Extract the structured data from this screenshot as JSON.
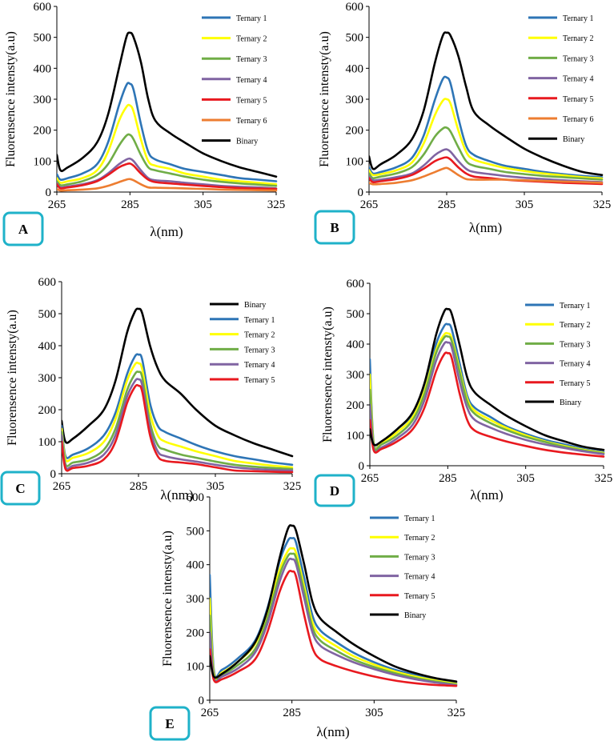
{
  "figure": {
    "panel_style": {
      "label_box_color": "#1fb2c9",
      "line_width_note": "thick"
    },
    "series_colors": {
      "Binary": "#000000",
      "Ternary 1": "#2e75b6",
      "Ternary 2": "#ffff00",
      "Ternary 3": "#70ad47",
      "Ternary 4": "#8064a2",
      "Ternary 5": "#e8191f",
      "Ternary 6": "#ed7d31"
    }
  },
  "chart_data": [
    {
      "panel": "A",
      "type": "line",
      "xlabel": "λ(nm)",
      "ylabel": "Fluorensence intensty(a.u)",
      "xlim": [
        265,
        325
      ],
      "ylim": [
        0,
        600
      ],
      "xticks": [
        "265",
        "285",
        "305",
        "325"
      ],
      "yticks": [
        "0",
        "100",
        "200",
        "300",
        "400",
        "500",
        "600"
      ],
      "legend": [
        "Ternary 1",
        "Ternary 2",
        "Ternary 3",
        "Ternary 4",
        "Ternary 5",
        "Ternary 6",
        "Binary"
      ],
      "x": [
        265,
        266,
        268,
        272,
        276,
        279,
        282,
        284,
        285,
        286,
        288,
        290,
        292,
        296,
        300,
        305,
        310,
        315,
        320,
        325
      ],
      "series": [
        {
          "name": "Ternary 1",
          "values": [
            58,
            40,
            45,
            60,
            90,
            160,
            280,
            345,
            350,
            330,
            220,
            130,
            105,
            90,
            75,
            65,
            55,
            45,
            40,
            35
          ]
        },
        {
          "name": "Ternary 2",
          "values": [
            45,
            30,
            35,
            45,
            70,
            130,
            230,
            275,
            280,
            260,
            170,
            100,
            85,
            75,
            60,
            50,
            40,
            35,
            30,
            25
          ]
        },
        {
          "name": "Ternary 3",
          "values": [
            35,
            22,
            25,
            35,
            55,
            90,
            150,
            182,
            185,
            170,
            120,
            80,
            70,
            60,
            50,
            40,
            33,
            28,
            24,
            20
          ]
        },
        {
          "name": "Ternary 4",
          "values": [
            28,
            15,
            18,
            25,
            38,
            60,
            90,
            105,
            108,
            100,
            70,
            45,
            38,
            35,
            30,
            25,
            20,
            17,
            15,
            12
          ]
        },
        {
          "name": "Ternary 5",
          "values": [
            25,
            12,
            15,
            22,
            35,
            55,
            80,
            90,
            92,
            85,
            60,
            40,
            32,
            28,
            24,
            20,
            16,
            13,
            11,
            10
          ]
        },
        {
          "name": "Ternary 6",
          "values": [
            10,
            5,
            6,
            8,
            12,
            20,
            32,
            40,
            42,
            38,
            25,
            15,
            14,
            13,
            12,
            10,
            8,
            7,
            6,
            5
          ]
        },
        {
          "name": "Binary",
          "values": [
            120,
            70,
            80,
            110,
            160,
            250,
            400,
            500,
            515,
            500,
            420,
            300,
            230,
            190,
            160,
            125,
            100,
            80,
            65,
            50
          ]
        }
      ],
      "label": "A"
    },
    {
      "panel": "B",
      "type": "line",
      "xlabel": "λ(nm)",
      "ylabel": "Fluorensence intensty(a.u)",
      "xlim": [
        265,
        325
      ],
      "ylim": [
        0,
        600
      ],
      "xticks": [
        "265",
        "285",
        "305",
        "325"
      ],
      "yticks": [
        "0",
        "100",
        "200",
        "300",
        "400",
        "500",
        "600"
      ],
      "legend": [
        "Ternary 1",
        "Ternary 2",
        "Ternary 3",
        "Ternary 4",
        "Ternary 5",
        "Ternary 6",
        "Binary"
      ],
      "x": [
        265,
        266,
        268,
        272,
        276,
        279,
        282,
        284,
        285,
        286,
        288,
        290,
        292,
        296,
        300,
        305,
        310,
        315,
        320,
        325
      ],
      "series": [
        {
          "name": "Ternary 1",
          "values": [
            80,
            60,
            65,
            80,
            110,
            180,
            300,
            365,
            370,
            350,
            240,
            150,
            120,
            100,
            85,
            75,
            65,
            58,
            52,
            48
          ]
        },
        {
          "name": "Ternary 2",
          "values": [
            70,
            55,
            58,
            70,
            95,
            155,
            250,
            295,
            300,
            285,
            200,
            130,
            105,
            90,
            78,
            68,
            60,
            54,
            48,
            44
          ]
        },
        {
          "name": "Ternary 3",
          "values": [
            60,
            45,
            50,
            60,
            80,
            120,
            180,
            205,
            208,
            195,
            145,
            100,
            85,
            75,
            65,
            58,
            52,
            48,
            44,
            40
          ]
        },
        {
          "name": "Ternary 4",
          "values": [
            50,
            38,
            40,
            48,
            60,
            85,
            120,
            135,
            138,
            130,
            100,
            75,
            65,
            58,
            52,
            46,
            42,
            38,
            35,
            32
          ]
        },
        {
          "name": "Ternary 5",
          "values": [
            45,
            32,
            35,
            42,
            55,
            75,
            100,
            110,
            112,
            105,
            80,
            60,
            50,
            45,
            40,
            36,
            33,
            30,
            28,
            26
          ]
        },
        {
          "name": "Ternary 6",
          "values": [
            30,
            25,
            26,
            30,
            38,
            50,
            65,
            75,
            78,
            72,
            55,
            42,
            40,
            40,
            40,
            38,
            36,
            34,
            32,
            30
          ]
        },
        {
          "name": "Binary",
          "values": [
            115,
            75,
            90,
            120,
            170,
            260,
            420,
            505,
            515,
            505,
            440,
            340,
            260,
            215,
            180,
            140,
            110,
            85,
            65,
            55
          ]
        }
      ],
      "label": "B"
    },
    {
      "panel": "C",
      "type": "line",
      "xlabel": "λ(nm)",
      "ylabel": "Fluorensence intensty(a.u)",
      "xlim": [
        265,
        325
      ],
      "ylim": [
        0,
        600
      ],
      "xticks": [
        "265",
        "285",
        "305",
        "325"
      ],
      "yticks": [
        "0",
        "100",
        "200",
        "300",
        "400",
        "500",
        "600"
      ],
      "legend": [
        "Binary",
        "Ternary 1",
        "Ternary 2",
        "Ternary 3",
        "Ternary 4",
        "Ternary 5"
      ],
      "x": [
        265,
        266,
        268,
        272,
        276,
        279,
        282,
        284,
        285,
        286,
        288,
        290,
        292,
        296,
        300,
        305,
        310,
        315,
        320,
        325
      ],
      "series": [
        {
          "name": "Binary",
          "values": [
            165,
            100,
            110,
            150,
            200,
            290,
            440,
            505,
            515,
            500,
            400,
            330,
            290,
            250,
            200,
            150,
            120,
            95,
            75,
            55
          ]
        },
        {
          "name": "Ternary 1",
          "values": [
            150,
            55,
            60,
            80,
            120,
            190,
            310,
            365,
            372,
            355,
            220,
            150,
            130,
            110,
            90,
            70,
            55,
            45,
            35,
            28
          ]
        },
        {
          "name": "Ternary 2",
          "values": [
            140,
            45,
            50,
            65,
            100,
            170,
            290,
            340,
            345,
            325,
            190,
            120,
            100,
            85,
            70,
            55,
            40,
            32,
            25,
            20
          ]
        },
        {
          "name": "Ternary 3",
          "values": [
            130,
            30,
            35,
            45,
            75,
            140,
            260,
            310,
            318,
            300,
            160,
            90,
            75,
            60,
            50,
            38,
            28,
            22,
            18,
            15
          ]
        },
        {
          "name": "Ternary 4",
          "values": [
            120,
            22,
            25,
            35,
            60,
            120,
            240,
            288,
            295,
            275,
            140,
            70,
            55,
            45,
            38,
            28,
            20,
            15,
            12,
            10
          ]
        },
        {
          "name": "Ternary 5",
          "values": [
            100,
            15,
            18,
            25,
            45,
            100,
            220,
            270,
            275,
            255,
            120,
            55,
            40,
            35,
            30,
            20,
            10,
            8,
            6,
            5
          ]
        }
      ],
      "label": "C"
    },
    {
      "panel": "D",
      "type": "line",
      "xlabel": "λ(nm)",
      "ylabel": "Fluorensence intensty(a.u)",
      "xlim": [
        265,
        325
      ],
      "ylim": [
        0,
        600
      ],
      "xticks": [
        "265",
        "285",
        "305",
        "325"
      ],
      "yticks": [
        "0",
        "100",
        "200",
        "300",
        "400",
        "500",
        "600"
      ],
      "legend": [
        "Ternary 1",
        "Ternary 2",
        "Ternary 3",
        "Ternary 4",
        "Ternary 5",
        "Binary"
      ],
      "x": [
        265,
        266,
        268,
        272,
        276,
        279,
        282,
        284,
        285,
        286,
        288,
        290,
        292,
        296,
        300,
        305,
        310,
        315,
        320,
        325
      ],
      "series": [
        {
          "name": "Ternary 1",
          "values": [
            350,
            75,
            80,
            120,
            170,
            260,
            400,
            458,
            465,
            450,
            340,
            230,
            190,
            160,
            130,
            105,
            85,
            70,
            55,
            45
          ]
        },
        {
          "name": "Ternary 2",
          "values": [
            300,
            70,
            75,
            110,
            160,
            245,
            380,
            430,
            435,
            420,
            320,
            220,
            180,
            150,
            125,
            100,
            80,
            65,
            52,
            42
          ]
        },
        {
          "name": "Ternary 3",
          "values": [
            250,
            65,
            70,
            100,
            150,
            235,
            370,
            420,
            425,
            410,
            310,
            210,
            170,
            140,
            118,
            95,
            78,
            62,
            50,
            40
          ]
        },
        {
          "name": "Ternary 4",
          "values": [
            200,
            55,
            60,
            90,
            135,
            215,
            345,
            400,
            405,
            390,
            280,
            190,
            150,
            125,
            105,
            85,
            70,
            58,
            47,
            38
          ]
        },
        {
          "name": "Ternary 5",
          "values": [
            150,
            50,
            55,
            80,
            120,
            190,
            310,
            365,
            370,
            355,
            240,
            150,
            115,
            95,
            80,
            65,
            52,
            43,
            36,
            30
          ]
        },
        {
          "name": "Binary",
          "values": [
            120,
            70,
            80,
            120,
            175,
            270,
            430,
            505,
            515,
            500,
            400,
            290,
            240,
            200,
            165,
            130,
            100,
            80,
            62,
            52
          ]
        }
      ],
      "label": "D"
    },
    {
      "panel": "E",
      "type": "line",
      "xlabel": "λ(nm)",
      "ylabel": "Fluorensence intensty(a.u)",
      "xlim": [
        265,
        325
      ],
      "ylim": [
        0,
        600
      ],
      "xticks": [
        "265",
        "285",
        "305",
        "325"
      ],
      "yticks": [
        "0",
        "100",
        "200",
        "300",
        "400",
        "500",
        "600"
      ],
      "legend": [
        "Ternary 1",
        "Ternary 2",
        "Ternary 3",
        "Ternary 4",
        "Ternary 5",
        "Binary"
      ],
      "x": [
        265,
        266,
        268,
        272,
        276,
        279,
        282,
        284,
        285,
        286,
        288,
        290,
        292,
        296,
        300,
        305,
        310,
        315,
        320,
        325
      ],
      "series": [
        {
          "name": "Ternary 1",
          "values": [
            370,
            90,
            90,
            125,
            175,
            270,
            410,
            470,
            478,
            465,
            360,
            250,
            205,
            170,
            140,
            112,
            90,
            75,
            62,
            52
          ]
        },
        {
          "name": "Ternary 2",
          "values": [
            300,
            80,
            82,
            115,
            165,
            255,
            385,
            440,
            448,
            435,
            335,
            230,
            190,
            158,
            130,
            105,
            85,
            70,
            58,
            48
          ]
        },
        {
          "name": "Ternary 3",
          "values": [
            250,
            70,
            75,
            105,
            150,
            240,
            370,
            425,
            432,
            420,
            320,
            215,
            175,
            145,
            120,
            98,
            80,
            66,
            55,
            46
          ]
        },
        {
          "name": "Ternary 4",
          "values": [
            200,
            65,
            70,
            95,
            140,
            225,
            350,
            410,
            416,
            402,
            300,
            200,
            160,
            133,
            112,
            92,
            75,
            62,
            52,
            44
          ]
        },
        {
          "name": "Ternary 5",
          "values": [
            150,
            60,
            62,
            85,
            120,
            200,
            320,
            375,
            380,
            365,
            250,
            155,
            120,
            100,
            85,
            70,
            58,
            50,
            45,
            42
          ]
        },
        {
          "name": "Binary",
          "values": [
            130,
            70,
            78,
            115,
            170,
            265,
            420,
            505,
            515,
            500,
            400,
            290,
            240,
            200,
            165,
            130,
            100,
            80,
            65,
            55
          ]
        }
      ],
      "label": "E"
    }
  ]
}
